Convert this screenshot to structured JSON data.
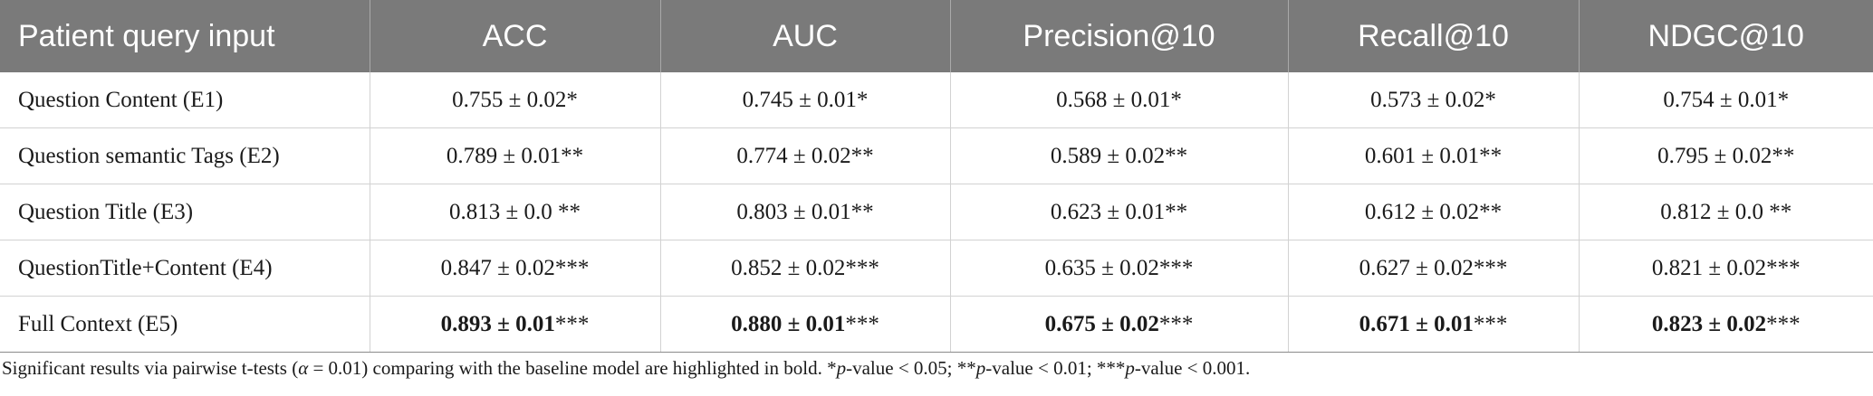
{
  "table": {
    "headers": [
      "Patient query input",
      "ACC",
      "AUC",
      "Precision@10",
      "Recall@10",
      "NDGC@10"
    ],
    "rows": [
      {
        "label": "Question Content (E1)",
        "cells": [
          {
            "value": "0.755 ± 0.02",
            "sig": "*"
          },
          {
            "value": "0.745 ± 0.01",
            "sig": "*"
          },
          {
            "value": "0.568 ± 0.01",
            "sig": "*"
          },
          {
            "value": "0.573 ± 0.02",
            "sig": "*"
          },
          {
            "value": "0.754 ± 0.01",
            "sig": "*"
          }
        ]
      },
      {
        "label": "Question semantic Tags (E2)",
        "cells": [
          {
            "value": "0.789 ± 0.01",
            "sig": "**"
          },
          {
            "value": "0.774 ± 0.02",
            "sig": "**"
          },
          {
            "value": "0.589 ± 0.02",
            "sig": "**"
          },
          {
            "value": "0.601 ± 0.01",
            "sig": "**"
          },
          {
            "value": "0.795 ± 0.02",
            "sig": "**"
          }
        ]
      },
      {
        "label": "Question Title (E3)",
        "cells": [
          {
            "value": "0.813 ± 0.0",
            "sig": " **"
          },
          {
            "value": "0.803 ± 0.01",
            "sig": "**"
          },
          {
            "value": "0.623 ± 0.01",
            "sig": "**"
          },
          {
            "value": "0.612 ± 0.02",
            "sig": "**"
          },
          {
            "value": "0.812 ± 0.0",
            "sig": " **"
          }
        ]
      },
      {
        "label": "QuestionTitle+Content (E4)",
        "cells": [
          {
            "value": "0.847 ± 0.02",
            "sig": "***"
          },
          {
            "value": "0.852 ± 0.02",
            "sig": "***"
          },
          {
            "value": "0.635 ± 0.02",
            "sig": "***"
          },
          {
            "value": "0.627 ± 0.02",
            "sig": "***"
          },
          {
            "value": "0.821 ± 0.02",
            "sig": "***"
          }
        ]
      },
      {
        "label": "Full Context (E5)",
        "bold": true,
        "cells": [
          {
            "value": "0.893 ± 0.01",
            "sig": "***"
          },
          {
            "value": "0.880 ± 0.01",
            "sig": "***"
          },
          {
            "value": "0.675 ± 0.02",
            "sig": "***"
          },
          {
            "value": "0.671 ± 0.01",
            "sig": "***"
          },
          {
            "value": "0.823 ± 0.02",
            "sig": "***"
          }
        ]
      }
    ]
  },
  "footnote": {
    "part1": "Significant results via pairwise t-tests (",
    "alpha_symbol": "α",
    "part2": " = 0.01) comparing with the baseline model are highlighted in bold. *",
    "p1": "p",
    "part3": "-value < 0.05; **",
    "p2": "p",
    "part4": "-value < 0.01; ***",
    "p3": "p",
    "part5": "-value < 0.001."
  }
}
